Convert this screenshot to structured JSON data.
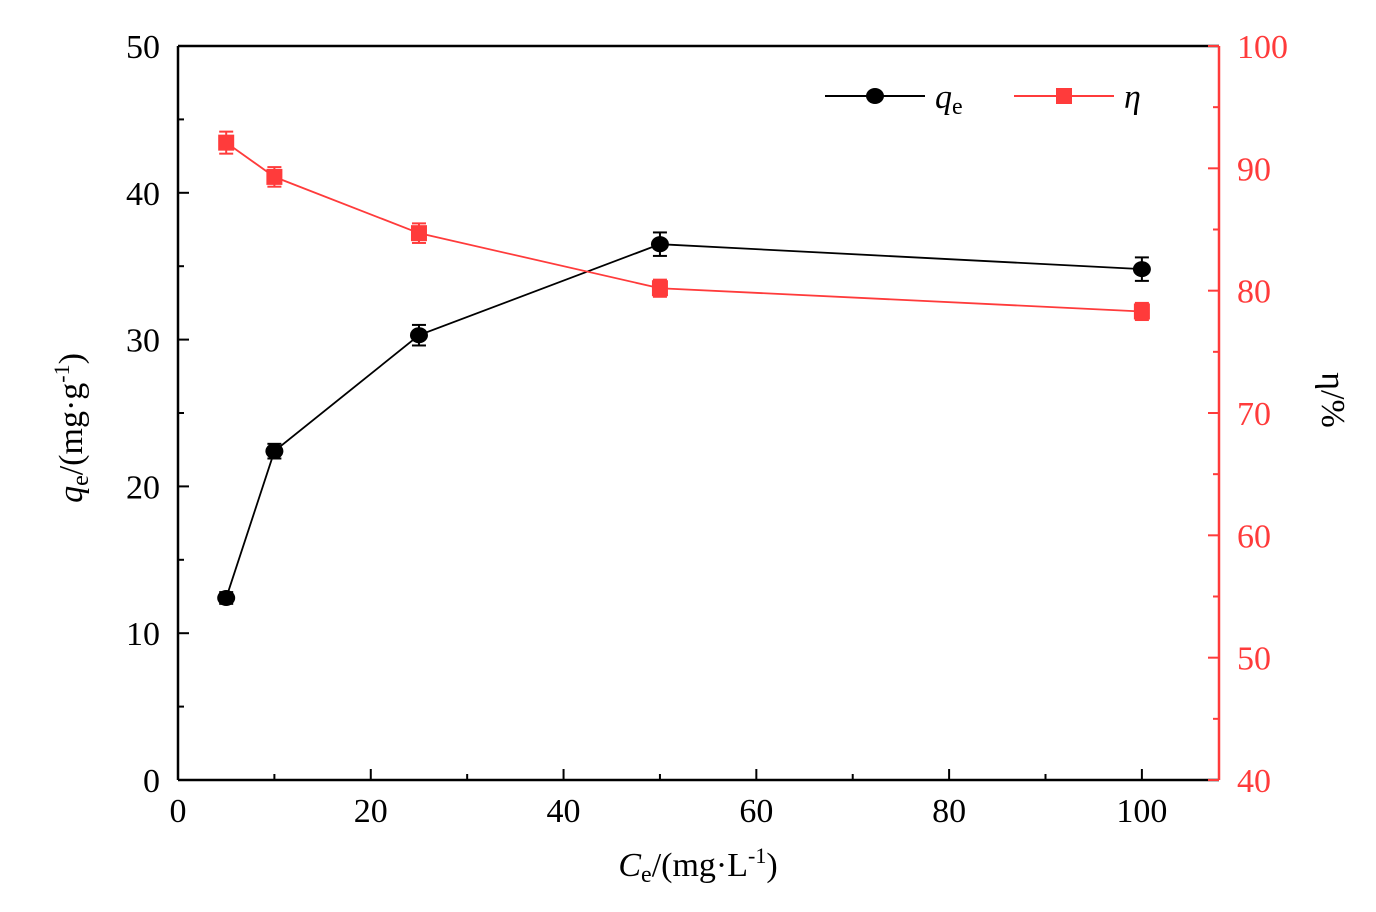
{
  "chart_data": {
    "type": "line",
    "x": [
      5,
      10,
      25,
      50,
      100
    ],
    "xlim": [
      0,
      108
    ],
    "xticks": [
      0,
      20,
      40,
      60,
      80,
      100
    ],
    "xlabel": {
      "main": "C",
      "sub": "e",
      "unit": "/(mg·L",
      "sup": "-1",
      "close": ")"
    },
    "y_left": {
      "lim": [
        0,
        50
      ],
      "ticks": [
        0,
        10,
        20,
        30,
        40,
        50
      ],
      "label": {
        "main": "q",
        "sub": "e",
        "unit": "/(mg·g",
        "sup": "-1",
        "close": ")"
      }
    },
    "y_right": {
      "lim": [
        40,
        100
      ],
      "ticks": [
        40,
        50,
        60,
        70,
        80,
        90,
        100
      ],
      "label": "η/%"
    },
    "series": [
      {
        "name": "qe",
        "legend_main": "q",
        "legend_sub": "e",
        "axis": "left",
        "marker": "circle",
        "color": "#000000",
        "values": [
          12.4,
          22.4,
          30.3,
          36.5,
          34.8
        ],
        "errors": [
          0.4,
          0.5,
          0.7,
          0.8,
          0.8
        ]
      },
      {
        "name": "η",
        "legend_main": "η",
        "legend_sub": "",
        "axis": "right",
        "marker": "square",
        "color": "#ff3b3b",
        "values": [
          92.1,
          89.3,
          84.7,
          80.2,
          78.3
        ],
        "errors": [
          0.9,
          0.8,
          0.8,
          0.7,
          0.7
        ]
      }
    ],
    "colors": {
      "left_axis": "#000000",
      "right_axis": "#ff3b3b"
    }
  }
}
